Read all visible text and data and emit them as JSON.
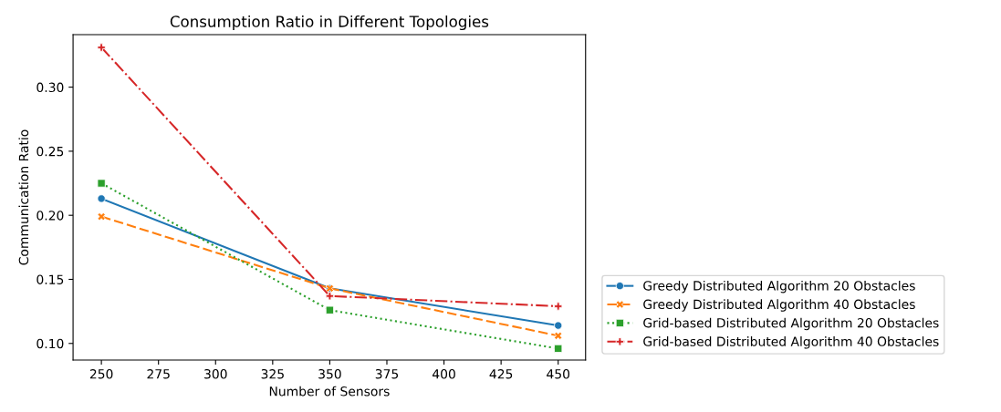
{
  "chart_data": {
    "type": "line",
    "title": "Consumption Ratio in Different Topologies",
    "xlabel": "Number of Sensors",
    "ylabel": "Communication Ratio",
    "x": [
      250,
      350,
      450
    ],
    "series": [
      {
        "name": "Greedy Distributed Algorithm 20 Obstacles",
        "color": "#1f77b4",
        "values": [
          0.213,
          0.143,
          0.114
        ],
        "marker": "circle",
        "line_style": "solid"
      },
      {
        "name": "Greedy Distributed Algorithm 40 Obstacles",
        "color": "#ff7f0e",
        "values": [
          0.199,
          0.143,
          0.106
        ],
        "marker": "cross",
        "line_style": "dashed"
      },
      {
        "name": "Grid-based Distributed Algorithm 20 Obstacles",
        "color": "#2ca02c",
        "values": [
          0.225,
          0.126,
          0.096
        ],
        "marker": "square",
        "line_style": "dotted"
      },
      {
        "name": "Grid-based Distributed Algorithm 40 Obstacles",
        "color": "#d62728",
        "values": [
          0.331,
          0.137,
          0.129
        ],
        "marker": "plus",
        "line_style": "dashdot"
      }
    ],
    "xlim": [
      237.6,
      462
    ],
    "ylim": [
      0.087,
      0.341
    ],
    "xticks": [
      250,
      275,
      300,
      325,
      350,
      375,
      400,
      425,
      450
    ],
    "yticks": [
      {
        "value": 0.1,
        "label": "0.10"
      },
      {
        "value": 0.15,
        "label": "0.15"
      },
      {
        "value": 0.2,
        "label": "0.20"
      },
      {
        "value": 0.25,
        "label": "0.25"
      },
      {
        "value": 0.3,
        "label": "0.30"
      }
    ],
    "grid": false,
    "legend": "bottom right"
  }
}
